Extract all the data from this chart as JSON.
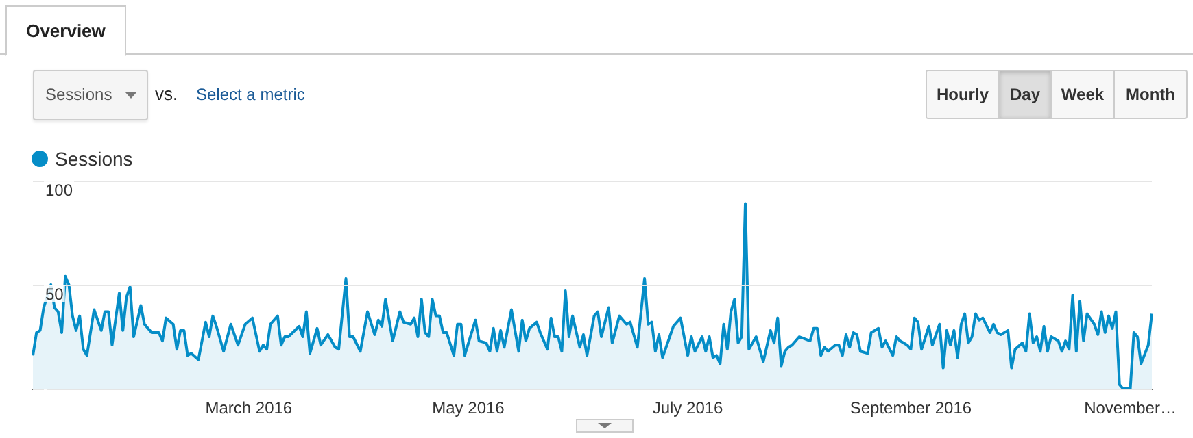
{
  "chart_data": {
    "type": "area",
    "annotations": [
      "Overview",
      "Sessions",
      "vs.",
      "Select a metric",
      "Hourly",
      "Day",
      "Week",
      "Month"
    ],
    "legend": "top left",
    "grid": "y",
    "xlim": [
      "2016-01-01",
      "2016-11-07"
    ],
    "xticks": [
      {
        "value": "2016-03-01",
        "label": "March 2016"
      },
      {
        "value": "2016-05-01",
        "label": "May 2016"
      },
      {
        "value": "2016-07-01",
        "label": "July 2016"
      },
      {
        "value": "2016-09-01",
        "label": "September 2016"
      },
      {
        "value": "2016-11-01",
        "label": "November…"
      }
    ],
    "ylim": [
      0,
      100
    ],
    "yticks": [
      {
        "value": 0,
        "label": null
      },
      50,
      100
    ],
    "series": [
      {
        "name": "Sessions",
        "color": "#058dc7",
        "x": [
          "2016-01-01",
          "2016-01-02",
          "2016-01-03",
          "2016-01-04",
          "2016-01-06",
          "2016-01-07",
          "2016-01-08",
          "2016-01-09",
          "2016-01-10",
          "2016-01-11",
          "2016-01-12",
          "2016-01-13",
          "2016-01-14",
          "2016-01-15",
          "2016-01-16",
          "2016-01-18",
          "2016-01-20",
          "2016-01-21",
          "2016-01-22",
          "2016-01-23",
          "2016-01-25",
          "2016-01-26",
          "2016-01-27",
          "2016-01-28",
          "2016-01-29",
          "2016-01-31",
          "2016-02-01",
          "2016-02-03",
          "2016-02-05",
          "2016-02-06",
          "2016-02-07",
          "2016-02-09",
          "2016-02-10",
          "2016-02-11",
          "2016-02-12",
          "2016-02-13",
          "2016-02-14",
          "2016-02-16",
          "2016-02-18",
          "2016-02-19",
          "2016-02-20",
          "2016-02-21",
          "2016-02-23",
          "2016-02-25",
          "2016-02-27",
          "2016-02-29",
          "2016-03-02",
          "2016-03-04",
          "2016-03-05",
          "2016-03-06",
          "2016-03-07",
          "2016-03-09",
          "2016-03-10",
          "2016-03-11",
          "2016-03-12",
          "2016-03-15",
          "2016-03-16",
          "2016-03-17",
          "2016-03-18",
          "2016-03-20",
          "2016-03-21",
          "2016-03-23",
          "2016-03-25",
          "2016-03-26",
          "2016-03-28",
          "2016-03-29",
          "2016-03-30",
          "2016-04-01",
          "2016-04-03",
          "2016-04-05",
          "2016-04-06",
          "2016-04-07",
          "2016-04-08",
          "2016-04-10",
          "2016-04-12",
          "2016-04-13",
          "2016-04-15",
          "2016-04-16",
          "2016-04-17",
          "2016-04-18",
          "2016-04-19",
          "2016-04-20",
          "2016-04-21",
          "2016-04-22",
          "2016-04-23",
          "2016-04-24",
          "2016-04-25",
          "2016-04-27",
          "2016-04-28",
          "2016-04-29",
          "2016-04-30",
          "2016-05-03",
          "2016-05-04",
          "2016-05-06",
          "2016-05-07",
          "2016-05-08",
          "2016-05-09",
          "2016-05-10",
          "2016-05-11",
          "2016-05-13",
          "2016-05-15",
          "2016-05-16",
          "2016-05-17",
          "2016-05-18",
          "2016-05-20",
          "2016-05-21",
          "2016-05-23",
          "2016-05-24",
          "2016-05-25",
          "2016-05-26",
          "2016-05-27",
          "2016-05-28",
          "2016-05-29",
          "2016-05-30",
          "2016-06-01",
          "2016-06-02",
          "2016-06-03",
          "2016-06-05",
          "2016-06-06",
          "2016-06-07",
          "2016-06-09",
          "2016-06-10",
          "2016-06-12",
          "2016-06-14",
          "2016-06-15",
          "2016-06-17",
          "2016-06-19",
          "2016-06-20",
          "2016-06-21",
          "2016-06-22",
          "2016-06-23",
          "2016-06-24",
          "2016-06-26",
          "2016-06-27",
          "2016-06-29",
          "2016-07-01",
          "2016-07-02",
          "2016-07-03",
          "2016-07-05",
          "2016-07-06",
          "2016-07-07",
          "2016-07-08",
          "2016-07-09",
          "2016-07-10",
          "2016-07-11",
          "2016-07-12",
          "2016-07-13",
          "2016-07-14",
          "2016-07-15",
          "2016-07-16",
          "2016-07-17",
          "2016-07-18",
          "2016-07-20",
          "2016-07-22",
          "2016-07-24",
          "2016-07-25",
          "2016-07-26",
          "2016-07-27",
          "2016-07-28",
          "2016-07-29",
          "2016-07-30",
          "2016-08-01",
          "2016-08-04",
          "2016-08-05",
          "2016-08-06",
          "2016-08-07",
          "2016-08-08",
          "2016-08-09",
          "2016-08-11",
          "2016-08-12",
          "2016-08-13",
          "2016-08-14",
          "2016-08-15",
          "2016-08-16",
          "2016-08-17",
          "2016-08-18",
          "2016-08-20",
          "2016-08-21",
          "2016-08-23",
          "2016-08-24",
          "2016-08-25",
          "2016-08-27",
          "2016-08-28",
          "2016-08-29",
          "2016-08-31",
          "2016-09-01",
          "2016-09-02",
          "2016-09-03",
          "2016-09-04",
          "2016-09-06",
          "2016-09-07",
          "2016-09-09",
          "2016-09-10",
          "2016-09-11",
          "2016-09-12",
          "2016-09-13",
          "2016-09-14",
          "2016-09-15",
          "2016-09-16",
          "2016-09-17",
          "2016-09-18",
          "2016-09-19",
          "2016-09-20",
          "2016-09-21",
          "2016-09-23",
          "2016-09-24",
          "2016-09-25",
          "2016-09-26",
          "2016-09-28",
          "2016-09-29",
          "2016-09-30",
          "2016-10-02",
          "2016-10-03",
          "2016-10-04",
          "2016-10-05",
          "2016-10-06",
          "2016-10-07",
          "2016-10-08",
          "2016-10-09",
          "2016-10-10",
          "2016-10-11",
          "2016-10-12",
          "2016-10-13",
          "2016-10-14",
          "2016-10-15",
          "2016-10-16",
          "2016-10-17",
          "2016-10-18",
          "2016-10-19",
          "2016-10-20",
          "2016-10-22",
          "2016-10-23",
          "2016-10-24",
          "2016-10-25",
          "2016-10-26",
          "2016-10-27",
          "2016-10-28",
          "2016-10-29",
          "2016-10-30",
          "2016-11-01",
          "2016-11-02",
          "2016-11-03",
          "2016-11-04",
          "2016-11-06",
          "2016-11-07"
        ],
        "values": [
          16,
          27,
          28,
          39,
          50,
          39,
          37,
          27,
          54,
          50,
          35,
          28,
          35,
          19,
          16,
          38,
          28,
          37,
          37,
          21,
          46,
          28,
          44,
          49,
          25,
          40,
          31,
          27,
          27,
          23,
          34,
          31,
          19,
          28,
          28,
          16,
          17,
          14,
          32,
          25,
          35,
          30,
          18,
          31,
          21,
          31,
          34,
          18,
          21,
          19,
          31,
          35,
          21,
          25,
          25,
          30,
          25,
          37,
          17,
          29,
          21,
          26,
          20,
          19,
          53,
          25,
          25,
          18,
          37,
          26,
          33,
          30,
          43,
          23,
          37,
          32,
          31,
          34,
          25,
          43,
          27,
          25,
          43,
          35,
          35,
          27,
          27,
          16,
          31,
          31,
          16,
          33,
          23,
          22,
          18,
          29,
          18,
          28,
          20,
          38,
          18,
          33,
          23,
          29,
          32,
          27,
          19,
          34,
          25,
          25,
          18,
          47,
          25,
          35,
          20,
          26,
          16,
          35,
          37,
          25,
          39,
          22,
          35,
          31,
          32,
          20,
          53,
          31,
          32,
          18,
          26,
          15,
          25,
          30,
          34,
          16,
          25,
          18,
          25,
          18,
          25,
          15,
          16,
          12,
          31,
          19,
          37,
          43,
          22,
          25,
          89,
          19,
          25,
          13,
          28,
          22,
          34,
          11,
          18,
          20,
          21,
          25,
          23,
          29,
          29,
          16,
          20,
          18,
          21,
          21,
          16,
          26,
          20,
          27,
          26,
          18,
          17,
          27,
          29,
          20,
          23,
          16,
          25,
          23,
          21,
          19,
          34,
          32,
          19,
          30,
          21,
          31,
          10,
          28,
          21,
          28,
          15,
          31,
          36,
          22,
          25,
          36,
          33,
          34,
          27,
          31,
          27,
          26,
          28,
          10,
          19,
          22,
          18,
          36,
          22,
          25,
          18,
          30,
          18,
          25,
          24,
          23,
          18,
          23,
          19,
          45,
          18,
          42,
          23,
          36,
          31,
          26,
          37,
          27,
          35,
          29,
          37,
          2,
          0,
          0,
          27,
          25,
          12,
          21,
          36
        ]
      }
    ]
  }
}
